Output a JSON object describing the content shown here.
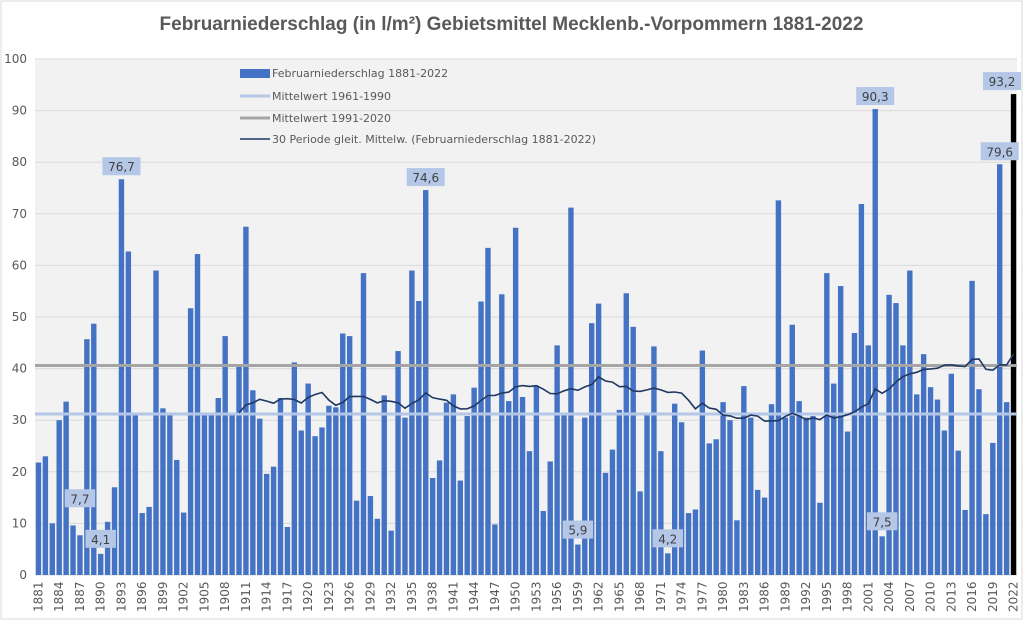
{
  "chart_data": {
    "type": "bar",
    "title": "Februarniederschlag (in l/m²) Gebietsmittel Mecklenb.-Vorpommern 1881-2022",
    "xlabel": "",
    "ylabel": "",
    "ylim": [
      0,
      100
    ],
    "yticks": [
      0,
      10,
      20,
      30,
      40,
      50,
      60,
      70,
      80,
      90,
      100
    ],
    "grid": true,
    "legend_placement": "top-left-center",
    "x_start": 1881,
    "x_end": 2022,
    "x_tick_step": 3,
    "series": [
      {
        "name": "Februarniederschlag 1881-2022",
        "type": "bar",
        "color": "#4472c4",
        "highlight_last_color": "#000000",
        "values": [
          21.8,
          23.0,
          10.0,
          30.0,
          33.6,
          9.6,
          7.7,
          45.7,
          48.7,
          4.1,
          10.3,
          17.0,
          76.7,
          62.7,
          31.0,
          12.0,
          13.2,
          59.0,
          32.3,
          31.0,
          22.3,
          12.1,
          51.7,
          62.2,
          31.5,
          31.5,
          34.3,
          46.3,
          31.0,
          40.6,
          67.5,
          35.8,
          30.3,
          19.6,
          21.0,
          34.3,
          9.3,
          41.2,
          28.0,
          37.1,
          26.9,
          28.6,
          32.8,
          32.5,
          46.8,
          46.3,
          14.4,
          58.5,
          15.3,
          10.9,
          34.8,
          8.6,
          43.4,
          30.5,
          59.0,
          53.1,
          74.6,
          18.8,
          22.2,
          33.4,
          35.0,
          18.3,
          30.8,
          36.3,
          53.0,
          63.4,
          9.8,
          54.4,
          33.7,
          67.3,
          34.5,
          24.0,
          36.7,
          12.4,
          22.0,
          44.5,
          31.5,
          71.2,
          5.9,
          30.5,
          48.8,
          52.6,
          19.8,
          24.3,
          32.0,
          54.6,
          48.1,
          16.2,
          31.0,
          44.3,
          24.0,
          4.2,
          33.2,
          29.6,
          12.0,
          12.7,
          43.5,
          25.5,
          26.3,
          33.5,
          30.0,
          10.6,
          36.6,
          30.5,
          16.5,
          15.0,
          33.1,
          72.6,
          30.5,
          48.5,
          33.7,
          30.5,
          30.8,
          14.0,
          58.5,
          37.1,
          56.0,
          27.8,
          46.9,
          71.9,
          44.5,
          90.3,
          7.5,
          54.3,
          52.7,
          44.5,
          59.0,
          35.0,
          42.8,
          36.4,
          34.0,
          28.0,
          39.0,
          24.1,
          12.6,
          57.0,
          36.0,
          11.8,
          25.6,
          79.6,
          33.5,
          93.2
        ]
      },
      {
        "name": "Mittelwert 1961-1990",
        "type": "hline",
        "color": "#b4c7e7",
        "value": 31.2
      },
      {
        "name": "Mittelwert 1991-2020",
        "type": "hline",
        "color": "#a5a5a5",
        "value": 40.6
      },
      {
        "name": "30 Periode gleit. Mittelw. (Februarniederschlag 1881-2022)",
        "type": "moving_average",
        "period": 30,
        "color": "#203864"
      }
    ],
    "data_labels": [
      {
        "year": 1887,
        "text": "7,7"
      },
      {
        "year": 1890,
        "text": "4,1"
      },
      {
        "year": 1893,
        "text": "76,7"
      },
      {
        "year": 1937,
        "text": "74,6"
      },
      {
        "year": 1959,
        "text": "5,9"
      },
      {
        "year": 1972,
        "text": "4,2"
      },
      {
        "year": 2002,
        "text": "90,3"
      },
      {
        "year": 2003,
        "text": "7,5"
      },
      {
        "year": 2020,
        "text": "79,6"
      },
      {
        "year": 2022,
        "text": "93,2"
      }
    ]
  }
}
